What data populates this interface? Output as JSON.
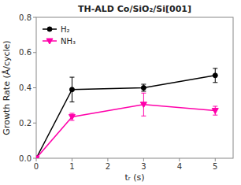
{
  "chart_data": {
    "type": "line",
    "title": "TH-ALD Co/SiO₂/Si[001]",
    "xlabel": "tᵣ (s)",
    "ylabel": "Growth Rate (Å/cycle)",
    "x": [
      0,
      1,
      3,
      5
    ],
    "series": [
      {
        "name": "H₂",
        "color": "black",
        "marker": "circle",
        "values": [
          0.0,
          0.39,
          0.4,
          0.47
        ],
        "errors": [
          0.0,
          0.07,
          0.02,
          0.04
        ]
      },
      {
        "name": "NH₃",
        "color": "#ff00aa",
        "marker": "triangle-down",
        "values": [
          0.0,
          0.235,
          0.305,
          0.27
        ],
        "errors": [
          0.0,
          0.02,
          0.065,
          0.025
        ]
      }
    ],
    "xlim": [
      0,
      5.5
    ],
    "ylim": [
      0,
      0.8
    ],
    "xticks": [
      0,
      1,
      2,
      3,
      4,
      5
    ],
    "yticks": [
      {
        "value": 0.0,
        "label": "0.0"
      },
      0.2,
      0.4,
      0.6,
      0.8
    ],
    "grid": false,
    "legend": "upper left"
  }
}
